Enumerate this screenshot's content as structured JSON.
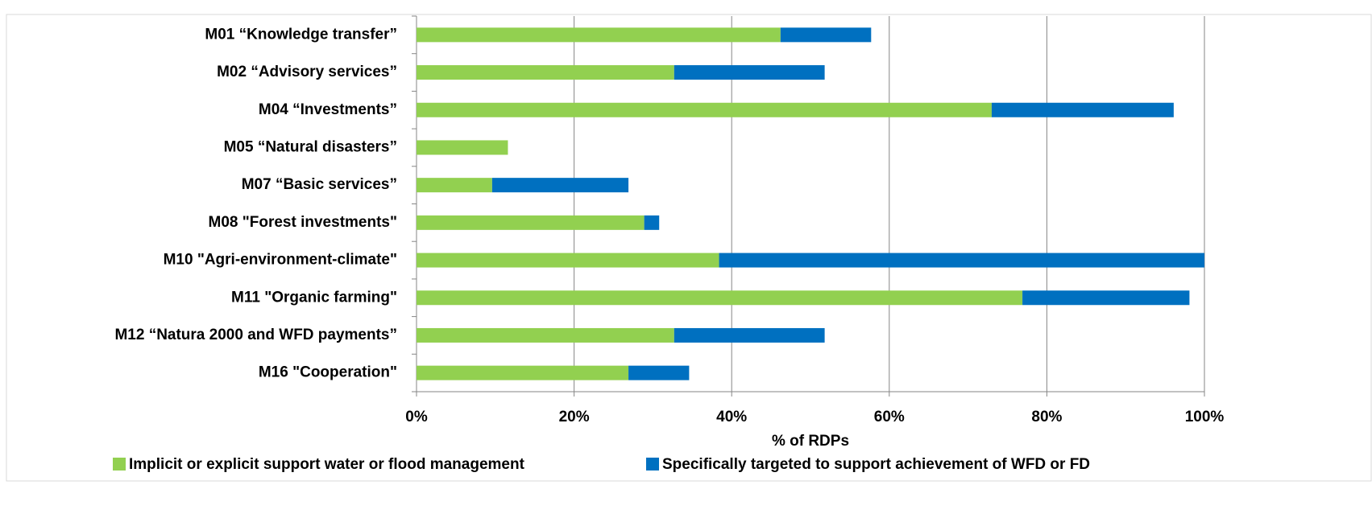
{
  "chart_data": {
    "type": "stacked_bar_horizontal",
    "categories": [
      "M01 “Knowledge transfer”",
      "M02 “Advisory services”",
      "M04 “Investments”",
      "M05 “Natural disasters”",
      "M07 “Basic services”",
      "M08 \"Forest investments\"",
      "M10 \"Agri-environment-climate\"",
      "M11 \"Organic farming\"",
      "M12 “Natura 2000 and WFD payments”",
      "M16 \"Cooperation\""
    ],
    "series": [
      {
        "name": "Implicit or explicit support water or flood management",
        "color": "#92d050",
        "values": [
          46.2,
          32.7,
          73.0,
          11.6,
          9.6,
          28.9,
          38.4,
          76.9,
          32.7,
          26.9
        ]
      },
      {
        "name": "Specifically targeted to support achievement of WFD or FD",
        "color": "#0070c0",
        "values": [
          11.5,
          19.1,
          23.1,
          0,
          17.3,
          1.9,
          61.6,
          21.2,
          19.1,
          7.7
        ]
      }
    ],
    "xlabel": "% of RDPs",
    "xlim": [
      0,
      100
    ],
    "xticks": [
      {
        "value": 0,
        "label": "0%"
      },
      {
        "value": 20,
        "label": "20%"
      },
      {
        "value": 40,
        "label": "40%"
      },
      {
        "value": 60,
        "label": "60%"
      },
      {
        "value": 80,
        "label": "80%"
      },
      {
        "value": 100,
        "label": "100%"
      }
    ],
    "grid": true,
    "legend": "bottom"
  }
}
